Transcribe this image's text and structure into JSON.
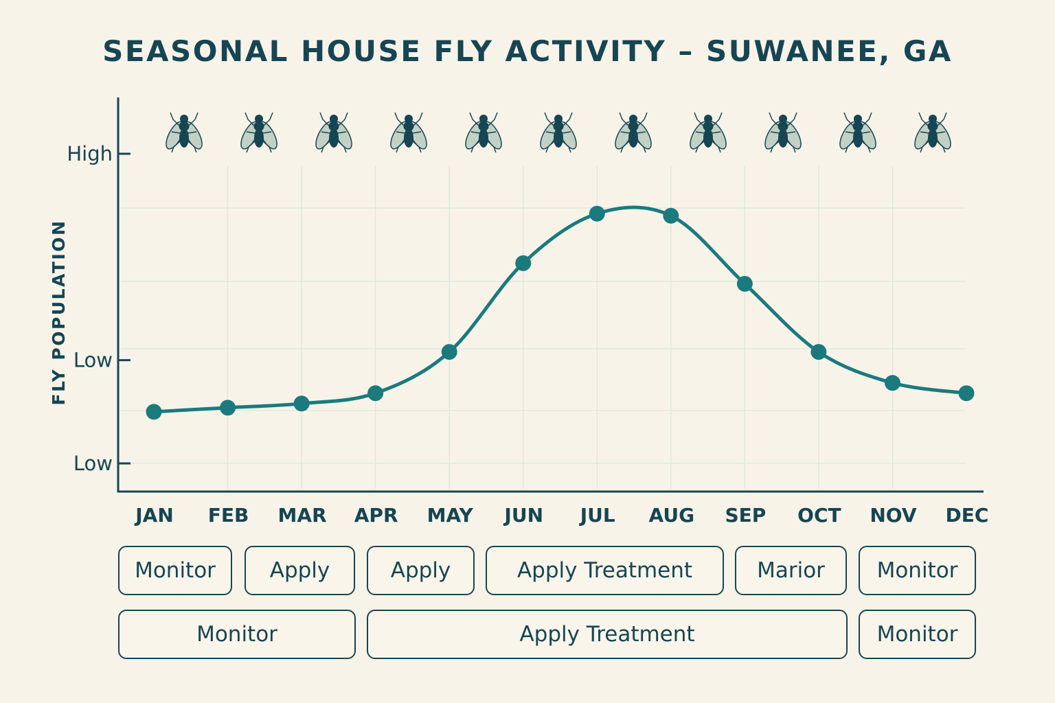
{
  "title": "SEASONAL HOUSE FLY ACTIVITY – SUWANEE, GA",
  "colors": {
    "background": "#f8f3e8",
    "ink": "#164553",
    "line": "#1a7a7e",
    "grid": "#dde9df",
    "fly_wing": "#c2d1c4"
  },
  "chart_data": {
    "type": "line",
    "title": "SEASONAL HOUSE FLY ACTIVITY – SUWANEE, GA",
    "xlabel": "",
    "ylabel": "FLY POPULATION",
    "categories": [
      "JAN",
      "FEB",
      "MAR",
      "APR",
      "MAY",
      "JUN",
      "JUL",
      "AUG",
      "SEP",
      "OCT",
      "NOV",
      "DEC"
    ],
    "values": [
      0.25,
      0.27,
      0.29,
      0.34,
      0.54,
      0.97,
      1.21,
      1.2,
      0.87,
      0.54,
      0.39,
      0.34
    ],
    "y_ticks": [
      {
        "value": 0,
        "label": "Low"
      },
      {
        "value": 0.5,
        "label": "Low"
      },
      {
        "value": 1.5,
        "label": "High"
      }
    ],
    "ylim": [
      0,
      1.5
    ],
    "grid": true,
    "marker": "circle",
    "smooth": true,
    "icon_row": {
      "icon": "house-fly-icon",
      "count": 11
    }
  },
  "activity_rows": [
    [
      {
        "label": "Monitor",
        "span": "JAN"
      },
      {
        "label": "Apply",
        "span": "FEB–MAR"
      },
      {
        "label": "Apply",
        "span": "APR–MAY"
      },
      {
        "label": "Apply Treatment",
        "span": "JUN–AUG"
      },
      {
        "label": "Marior",
        "span": "SEP–OCT"
      },
      {
        "label": "Monitor",
        "span": "NOV–DEC"
      }
    ],
    [
      {
        "label": "Monitor",
        "span": "JAN–MAR"
      },
      {
        "label": "Apply Treatment",
        "span": "APR–OCT"
      },
      {
        "label": "Monitor",
        "span": "NOV–DEC"
      }
    ]
  ]
}
